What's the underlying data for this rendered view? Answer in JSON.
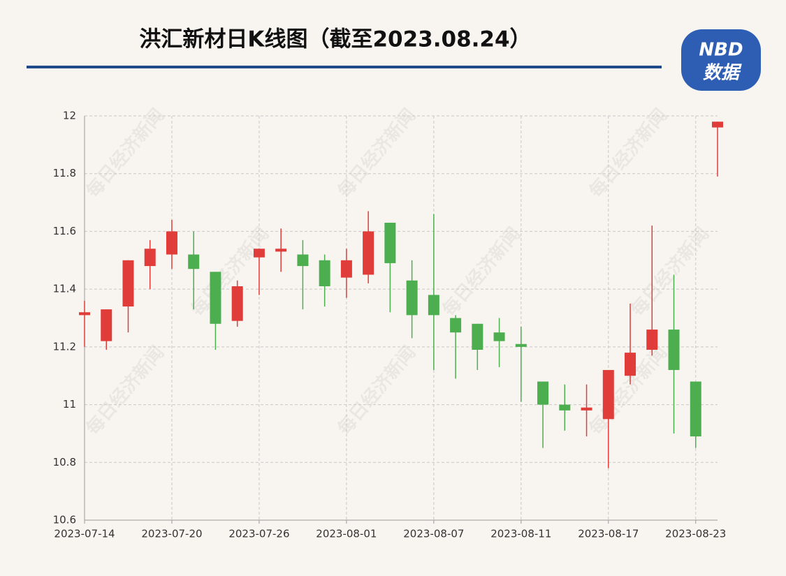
{
  "chart_data": {
    "type": "candlestick",
    "title": "洪汇新材日K线图（截至2023.08.24）",
    "logo": [
      "NBD",
      "数据"
    ],
    "watermark": "每日经济新闻",
    "categories": [
      "2023-07-14",
      null,
      null,
      null,
      "2023-07-20",
      null,
      null,
      null,
      "2023-07-26",
      null,
      null,
      null,
      "2023-08-01",
      null,
      null,
      null,
      "2023-08-07",
      null,
      null,
      null,
      "2023-08-11",
      null,
      null,
      null,
      "2023-08-17",
      null,
      null,
      null,
      "2023-08-23",
      null
    ],
    "open": [
      11.31,
      11.22,
      11.34,
      11.48,
      11.52,
      11.52,
      11.46,
      11.29,
      11.51,
      11.53,
      11.52,
      11.5,
      11.44,
      11.45,
      11.63,
      11.43,
      11.38,
      11.3,
      11.28,
      11.25,
      11.21,
      11.08,
      11.0,
      10.98,
      10.95,
      11.1,
      11.19,
      11.26,
      11.08,
      11.96
    ],
    "high": [
      11.36,
      11.33,
      11.5,
      11.57,
      11.64,
      11.6,
      11.46,
      11.43,
      11.54,
      11.61,
      11.57,
      11.52,
      11.54,
      11.67,
      11.63,
      11.5,
      11.66,
      11.31,
      11.28,
      11.3,
      11.27,
      11.08,
      11.07,
      11.07,
      11.12,
      11.35,
      11.62,
      11.45,
      11.08,
      11.98
    ],
    "low": [
      11.2,
      11.19,
      11.25,
      11.4,
      11.47,
      11.33,
      11.19,
      11.27,
      11.38,
      11.46,
      11.33,
      11.34,
      11.37,
      11.42,
      11.32,
      11.23,
      11.12,
      11.09,
      11.12,
      11.13,
      11.01,
      10.85,
      10.91,
      10.89,
      10.78,
      11.07,
      11.17,
      10.9,
      10.85,
      11.79
    ],
    "close": [
      11.32,
      11.33,
      11.5,
      11.54,
      11.6,
      11.47,
      11.28,
      11.41,
      11.54,
      11.54,
      11.48,
      11.41,
      11.5,
      11.6,
      11.49,
      11.31,
      11.31,
      11.25,
      11.19,
      11.22,
      11.2,
      11.0,
      10.98,
      10.99,
      11.12,
      11.18,
      11.26,
      11.12,
      10.89,
      11.98
    ],
    "up_color": "#e03c3a",
    "down_color": "#4cae4f",
    "ylim": [
      10.6,
      12
    ],
    "yticks": [
      10.6,
      10.8,
      11,
      11.2,
      11.4,
      11.6,
      11.8,
      12
    ],
    "grid": true
  }
}
